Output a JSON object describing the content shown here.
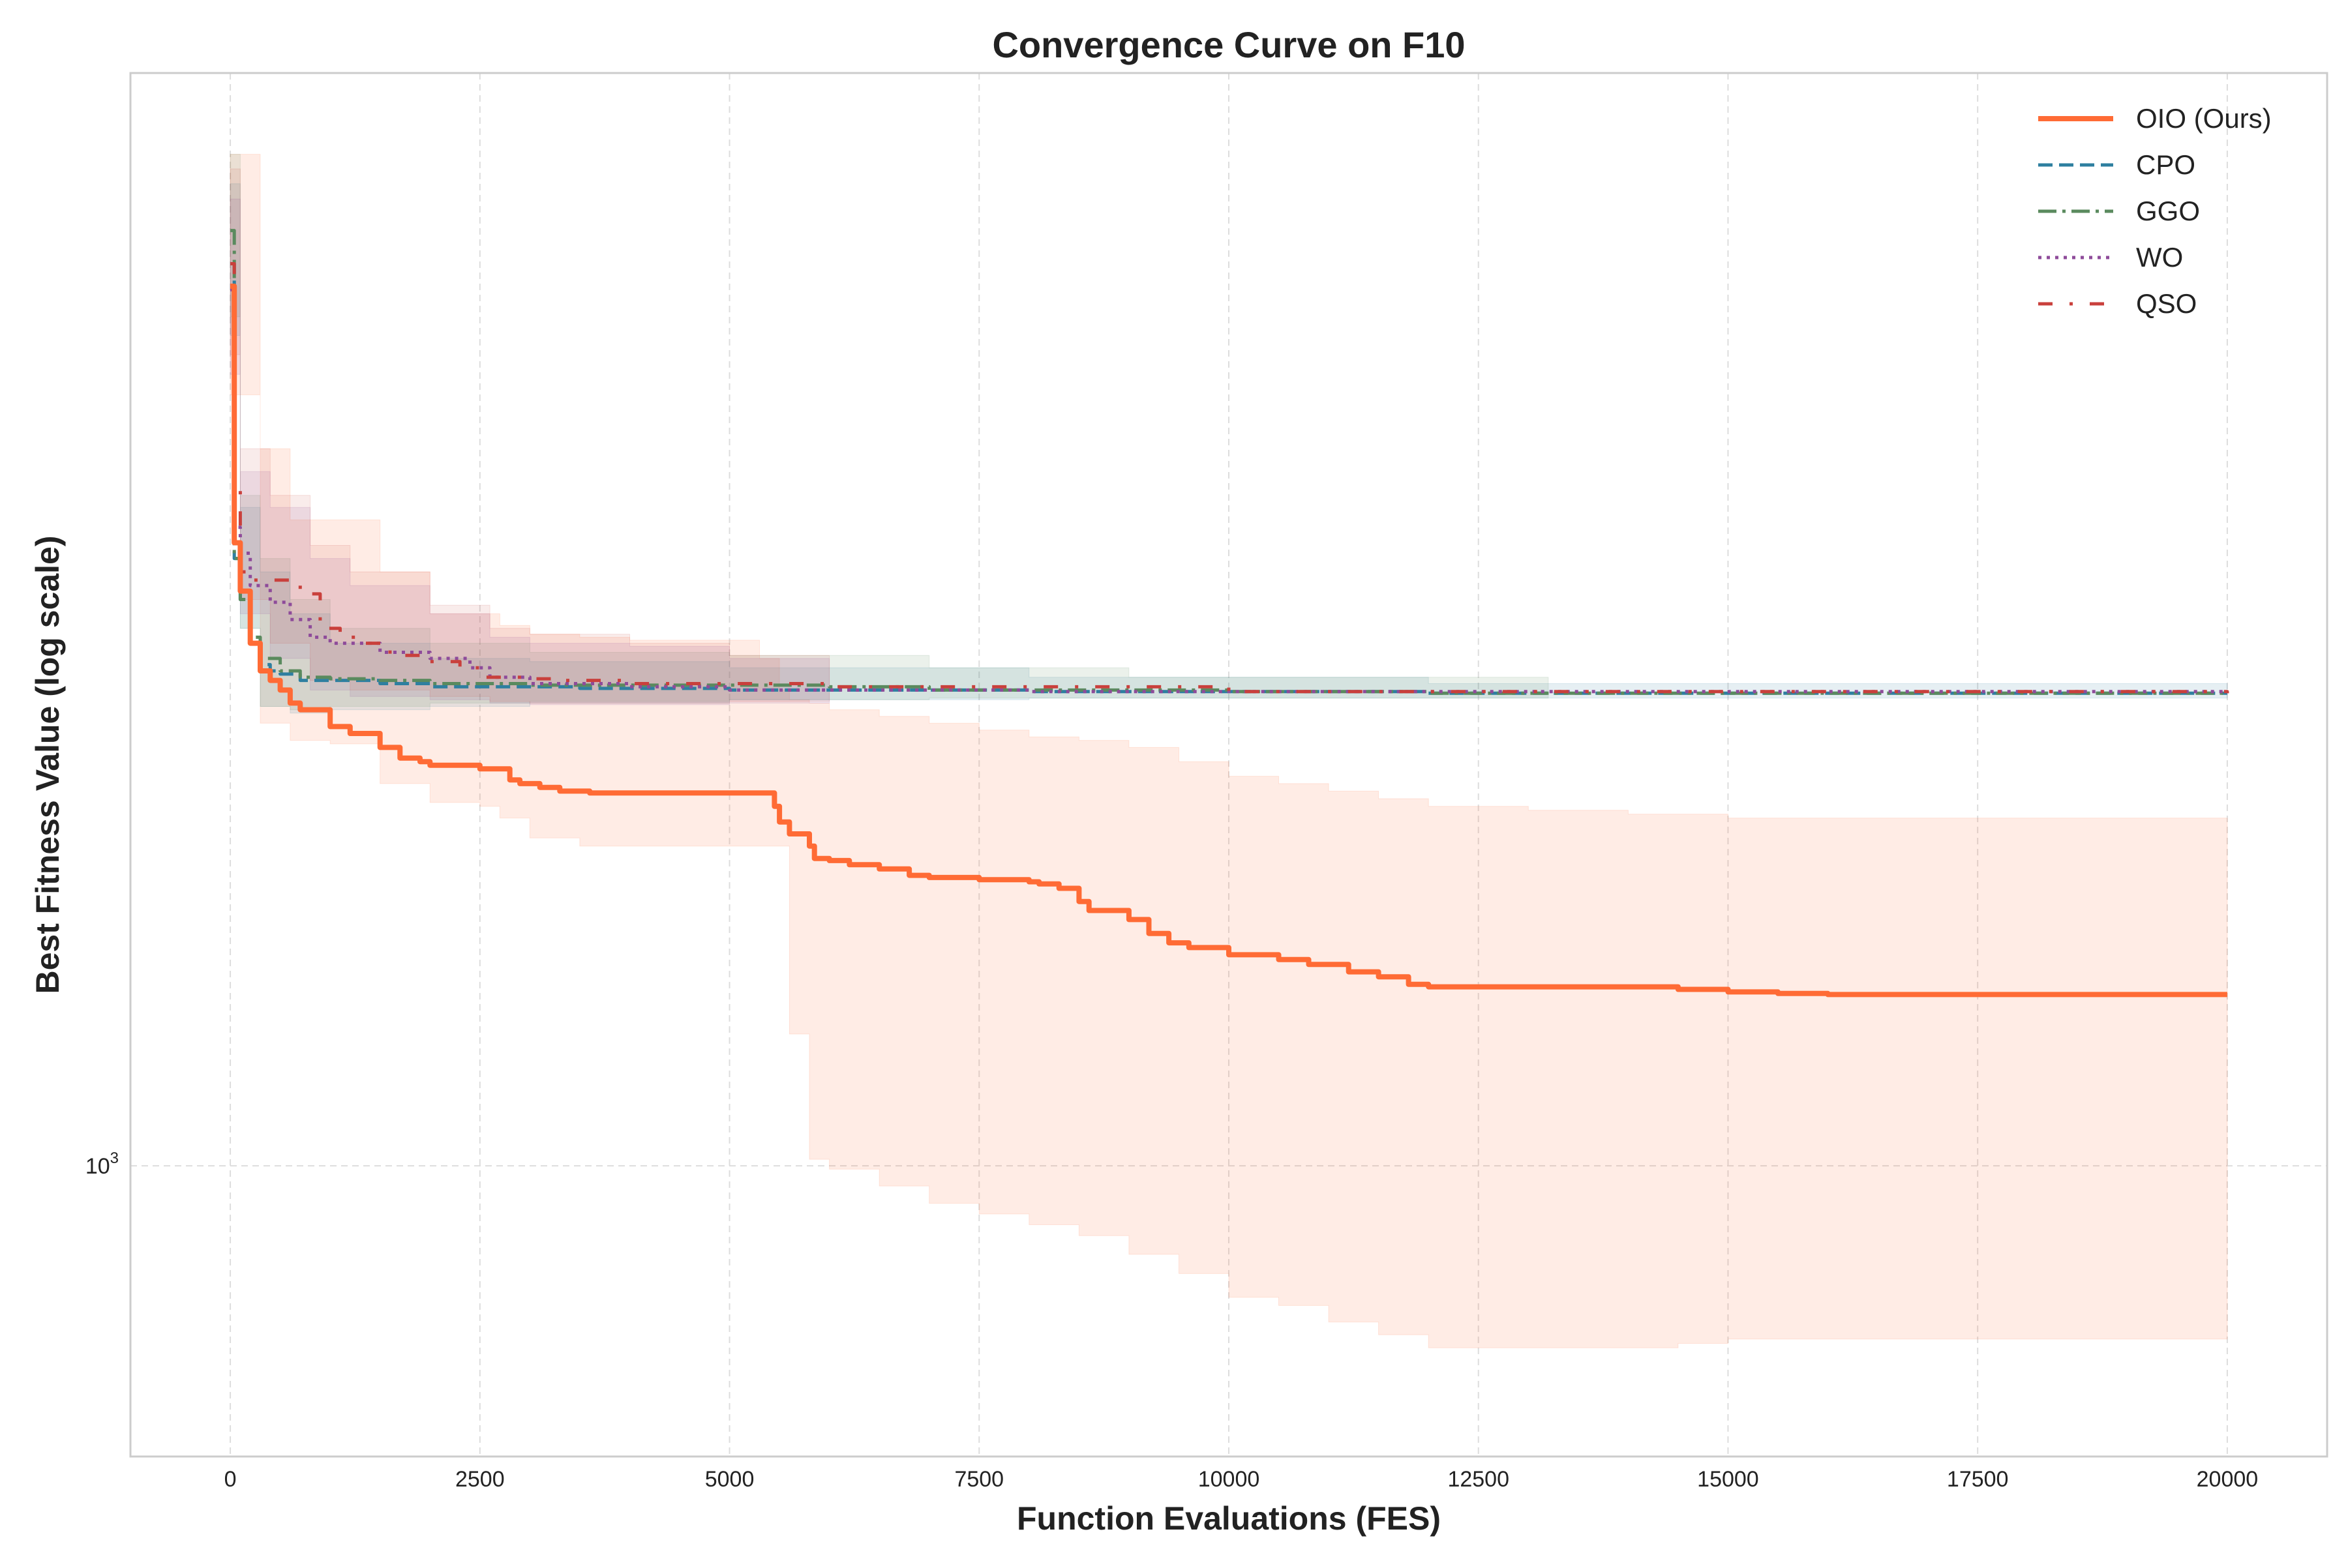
{
  "chart_data": {
    "type": "line",
    "title": "Convergence Curve on F10",
    "xlabel": "Function Evaluations (FES)",
    "ylabel": "Best Fitness Value (log scale)",
    "yscale": "log",
    "xlim": [
      -1000,
      21000
    ],
    "ylim": [
      645,
      5200
    ],
    "grid": true,
    "legend_position": "top-right",
    "x_ticks": [
      0,
      2500,
      5000,
      7500,
      10000,
      12500,
      15000,
      17500,
      20000
    ],
    "x_tick_labels": [
      "0",
      "2500",
      "5000",
      "7500",
      "10000",
      "12500",
      "15000",
      "17500",
      "20000"
    ],
    "y_ticks": [
      1000
    ],
    "y_tick_label_base": "10",
    "y_tick_label_exp": "3",
    "series": [
      {
        "name": "OIO (Ours)",
        "color": "#ff6b35",
        "style": "solid",
        "width": 8,
        "x": [
          0,
          40,
          100,
          200,
          300,
          400,
          500,
          600,
          700,
          800,
          900,
          1000,
          1200,
          1500,
          1700,
          1900,
          2000,
          2500,
          2800,
          2900,
          3100,
          3300,
          3600,
          4000,
          4500,
          5000,
          5300,
          5450,
          5500,
          5600,
          5800,
          5850,
          6000,
          6200,
          6500,
          6800,
          7000,
          7500,
          8000,
          8100,
          8300,
          8500,
          8600,
          9000,
          9200,
          9400,
          9600,
          10000,
          10500,
          10800,
          11200,
          11500,
          11800,
          12000,
          12500,
          13000,
          14000,
          14500,
          15000,
          15500,
          16000,
          18000,
          20000
        ],
        "y": [
          3770,
          2560,
          2380,
          2200,
          2110,
          2080,
          2050,
          2010,
          1990,
          1990,
          1990,
          1940,
          1920,
          1880,
          1850,
          1840,
          1830,
          1820,
          1790,
          1780,
          1770,
          1760,
          1755,
          1755,
          1755,
          1755,
          1755,
          1720,
          1680,
          1650,
          1620,
          1590,
          1585,
          1575,
          1565,
          1550,
          1545,
          1540,
          1535,
          1530,
          1520,
          1490,
          1470,
          1450,
          1420,
          1400,
          1390,
          1375,
          1365,
          1355,
          1340,
          1330,
          1315,
          1310,
          1310,
          1310,
          1310,
          1305,
          1300,
          1297,
          1295,
          1295,
          1295
        ]
      },
      {
        "name": "CPO",
        "color": "#2e7fa0",
        "style": "dashed",
        "width": 5,
        "x": [
          0,
          40,
          100,
          200,
          300,
          400,
          500,
          700,
          1000,
          1500,
          2000,
          2500,
          3500,
          5000,
          8000,
          12000,
          16000,
          20000
        ],
        "y": [
          3900,
          2500,
          2350,
          2200,
          2130,
          2110,
          2100,
          2080,
          2080,
          2070,
          2060,
          2060,
          2055,
          2050,
          2045,
          2040,
          2040,
          2040
        ]
      },
      {
        "name": "GGO",
        "color": "#5a8a5e",
        "style": "dashdot",
        "width": 5,
        "x": [
          0,
          40,
          100,
          200,
          300,
          500,
          700,
          1000,
          1500,
          2000,
          3000,
          4000,
          6000,
          7000,
          10000,
          12000,
          20000
        ],
        "y": [
          4100,
          2500,
          2350,
          2220,
          2150,
          2110,
          2090,
          2085,
          2080,
          2070,
          2065,
          2065,
          2060,
          2050,
          2045,
          2040,
          2040
        ]
      },
      {
        "name": "WO",
        "color": "#8e4b9a",
        "style": "dotted",
        "width": 5,
        "x": [
          0,
          40,
          100,
          200,
          400,
          600,
          800,
          1000,
          1500,
          2000,
          2400,
          2600,
          3000,
          4000,
          5000,
          8000,
          20000
        ],
        "y": [
          3750,
          2620,
          2520,
          2400,
          2340,
          2280,
          2220,
          2200,
          2170,
          2150,
          2120,
          2090,
          2070,
          2060,
          2050,
          2045,
          2040
        ]
      },
      {
        "name": "QSO",
        "color": "#c9403c",
        "style": "loosely-dashdot",
        "width": 5,
        "x": [
          0,
          40,
          100,
          200,
          400,
          500,
          700,
          900,
          1100,
          1300,
          1600,
          1900,
          2300,
          2500,
          2700,
          3000,
          3300,
          4000,
          6000,
          10000,
          20000
        ],
        "y": [
          3900,
          2800,
          2450,
          2420,
          2420,
          2420,
          2370,
          2250,
          2220,
          2200,
          2160,
          2140,
          2120,
          2090,
          2090,
          2085,
          2080,
          2070,
          2060,
          2045,
          2040
        ]
      }
    ],
    "bands": [
      {
        "series": "OIO (Ours)",
        "color": "#ff6b35",
        "opacity": 0.13,
        "x": [
          0,
          300,
          600,
          1000,
          1500,
          2000,
          2500,
          2700,
          3000,
          3500,
          4000,
          5000,
          5300,
          5500,
          5600,
          5800,
          6000,
          6500,
          7000,
          7500,
          8000,
          8500,
          9000,
          9500,
          10000,
          10500,
          11000,
          11500,
          12000,
          13000,
          14000,
          14500,
          15000,
          16000,
          18000,
          20000
        ],
        "upper": [
          4600,
          2950,
          2650,
          2650,
          2450,
          2300,
          2300,
          2260,
          2230,
          2220,
          2210,
          2210,
          2150,
          2050,
          2020,
          2010,
          1990,
          1970,
          1950,
          1930,
          1910,
          1900,
          1880,
          1840,
          1800,
          1780,
          1760,
          1740,
          1720,
          1710,
          1700,
          1700,
          1690,
          1690,
          1690,
          1690
        ],
        "lower": [
          3200,
          1950,
          1900,
          1890,
          1780,
          1730,
          1720,
          1690,
          1640,
          1620,
          1620,
          1620,
          1620,
          1620,
          1220,
          1010,
          995,
          970,
          945,
          930,
          915,
          900,
          875,
          850,
          820,
          810,
          790,
          775,
          760,
          760,
          760,
          765,
          770,
          770,
          770,
          770
        ]
      },
      {
        "series": "CPO",
        "color": "#2e7fa0",
        "opacity": 0.12,
        "x": [
          0,
          100,
          300,
          600,
          1000,
          2000,
          3000,
          5000,
          8000,
          12000,
          20000
        ],
        "upper": [
          4400,
          2700,
          2450,
          2300,
          2200,
          2150,
          2140,
          2120,
          2090,
          2070,
          2060
        ],
        "lower": [
          3500,
          2250,
          2000,
          1980,
          1990,
          2000,
          2010,
          2020,
          2025,
          2025,
          2025
        ]
      },
      {
        "series": "GGO",
        "color": "#5a8a5e",
        "opacity": 0.12,
        "x": [
          0,
          100,
          300,
          600,
          1000,
          2000,
          3000,
          5000,
          7000,
          9000,
          13200
        ],
        "upper": [
          4600,
          2750,
          2500,
          2350,
          2250,
          2200,
          2170,
          2160,
          2120,
          2090,
          2065
        ],
        "lower": [
          3600,
          2250,
          2000,
          1990,
          2000,
          2010,
          2015,
          2020,
          2025,
          2025,
          2025
        ]
      },
      {
        "series": "WO",
        "color": "#8e4b9a",
        "opacity": 0.12,
        "x": [
          0,
          100,
          400,
          800,
          1200,
          2000,
          2600,
          3000,
          4000,
          5000,
          6000
        ],
        "upper": [
          4300,
          2850,
          2700,
          2500,
          2400,
          2300,
          2220,
          2200,
          2190,
          2150,
          2110
        ],
        "lower": [
          3300,
          2300,
          2150,
          2050,
          2030,
          2020,
          2010,
          2005,
          2005,
          2010,
          2015
        ]
      },
      {
        "series": "QSO",
        "color": "#c9403c",
        "opacity": 0.1,
        "x": [
          0,
          100,
          400,
          800,
          1200,
          2000,
          2600,
          3000,
          4000,
          5000,
          6000
        ],
        "upper": [
          4500,
          2950,
          2750,
          2550,
          2450,
          2330,
          2250,
          2230,
          2200,
          2160,
          2120
        ],
        "lower": [
          3400,
          2350,
          2200,
          2080,
          2050,
          2030,
          2015,
          2010,
          2010,
          2015,
          2020
        ]
      }
    ]
  }
}
